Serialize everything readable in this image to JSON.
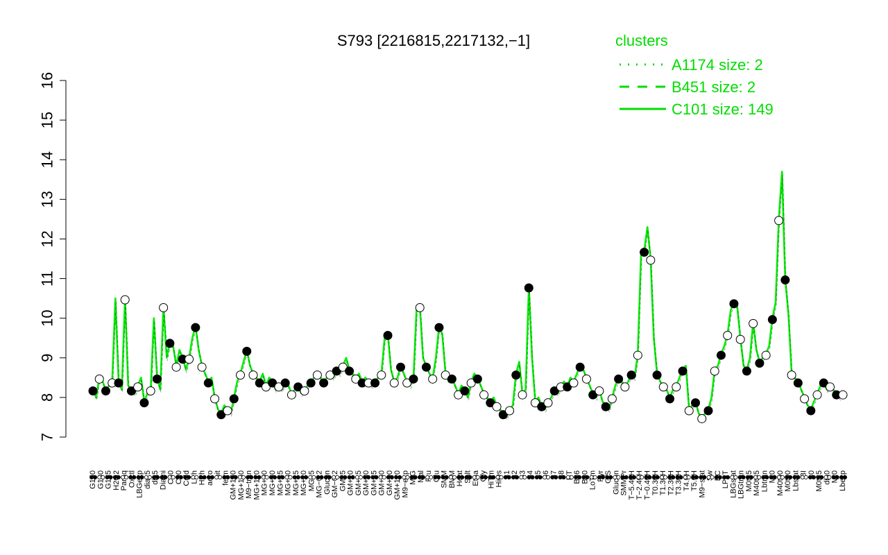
{
  "colors": {
    "series": "#00ee00",
    "legend": "#00dd00",
    "axis": "#000000",
    "marker_fill_dark": "#000000",
    "marker_fill_light": "#ffffff"
  },
  "chart_data": {
    "type": "line",
    "title": "S793 [2216815,2217132,−1]",
    "xlabel": "",
    "ylabel": "",
    "ylim": [
      7,
      16
    ],
    "yticks": [
      7,
      8,
      9,
      10,
      11,
      12,
      13,
      14,
      15,
      16
    ],
    "grid": false,
    "legend": {
      "title": "clusters",
      "placement": "top-right",
      "entries": [
        {
          "label": "A1174 size: 2",
          "style": "dotted"
        },
        {
          "label": "B451 size: 2",
          "style": "dashed"
        },
        {
          "label": "C101 size: 149",
          "style": "solid"
        }
      ]
    },
    "x_labels": [
      "G150",
      "G180",
      "G135",
      "H2O2",
      "Paraq",
      "Oxctl",
      "LBGexp",
      "dia15",
      "dia5",
      "Diami",
      "C30",
      "C90",
      "Cold",
      "LPh",
      "HPh",
      "aero",
      "nit",
      "ferm",
      "GM+150",
      "MG+150",
      "M9−tran",
      "MG+120",
      "MG+90",
      "MG+60",
      "MG+45",
      "MG+30",
      "MG+15",
      "MG+10",
      "MG+5",
      "MG−0.2",
      "Glucon",
      "GM−0.2",
      "GM+5",
      "GM+10",
      "GM+15",
      "GM+30",
      "GM+45",
      "GM+60",
      "GM+90",
      "GM+120",
      "M9−exp",
      "M/G",
      "Mal",
      "Fru",
      "Glu",
      "SMM",
      "BMM",
      "Heat",
      "Salt",
      "Etha",
      "Gly",
      "HiTm",
      "HiOs",
      "S1",
      "S2",
      "S3",
      "S4",
      "S5",
      "S6",
      "S7",
      "S8",
      "BT",
      "B36",
      "B60",
      "LoTm",
      "Pyr",
      "G/S",
      "Glucon",
      "SMMPr",
      "T−5.40H",
      "T−2.40H",
      "T−0.40H",
      "T0.30H",
      "T1.30H",
      "T2.30H",
      "T3.30H",
      "T4.0H",
      "T5.0H",
      "M9−stat",
      "Sw",
      "BC",
      "LPhT",
      "LBGstat",
      "LBGtran",
      "M0t45",
      "M40t45",
      "Lbtran",
      "Mt0",
      "M40t90",
      "M0t90",
      "Lbstat",
      "BI",
      "S0",
      "M0t45",
      "dia0",
      "Mt0",
      "Lbexp"
    ],
    "series": [
      {
        "values": [
          8.2,
          8.0,
          8.5,
          8.4,
          8.2,
          8.3,
          8.4,
          10.5,
          8.4,
          8.2,
          10.5,
          8.3,
          8.2,
          8.1,
          8.3,
          8.5,
          7.9,
          8.1,
          8.2,
          10.0,
          8.5,
          8.2,
          10.3,
          9.0,
          9.4,
          9.3,
          8.8,
          9.2,
          9.0,
          8.7,
          9.0,
          9.5,
          9.8,
          9.2,
          8.8,
          8.6,
          8.4,
          8.5,
          8.0,
          7.7,
          7.6,
          7.8,
          7.7,
          7.6,
          8.0,
          8.4,
          8.6,
          8.9,
          9.2,
          8.8,
          8.6,
          8.5,
          8.4,
          8.6,
          8.3,
          8.5,
          8.4,
          8.2,
          8.3,
          8.2,
          8.4,
          8.3,
          8.1,
          8.2,
          8.3,
          8.1,
          8.2,
          8.3,
          8.4,
          8.5,
          8.6,
          8.5,
          8.4,
          8.5,
          8.6,
          8.5,
          8.7,
          8.6,
          8.8,
          9.0,
          8.7,
          8.6,
          8.5,
          8.6,
          8.4,
          8.5,
          8.4,
          8.3,
          8.4,
          8.5,
          8.6,
          9.5,
          9.6,
          8.7,
          8.4,
          8.5,
          8.8,
          8.6,
          8.4,
          8.3,
          8.5,
          10.3,
          10.3,
          9.0,
          8.8,
          8.6,
          8.5,
          9.0,
          9.8,
          9.6,
          8.6,
          8.4,
          8.5,
          8.3,
          8.1,
          8.3,
          8.2,
          8.0,
          8.4,
          8.6,
          8.5,
          8.3,
          8.1,
          8.0,
          7.9,
          8.0,
          7.8,
          7.7,
          7.6,
          7.5,
          7.7,
          7.8,
          8.6,
          8.9,
          8.1,
          8.2,
          10.8,
          9.0,
          7.9,
          8.0,
          7.8,
          7.7,
          7.9,
          8.0,
          8.2,
          8.1,
          8.3,
          8.4,
          8.3,
          8.5,
          8.4,
          8.6,
          8.8,
          8.7,
          8.5,
          8.3,
          8.1,
          8.0,
          8.2,
          7.9,
          7.8,
          7.7,
          8.0,
          8.3,
          8.5,
          8.4,
          8.3,
          8.4,
          8.6,
          8.5,
          9.1,
          11.6,
          11.7,
          12.3,
          11.5,
          9.5,
          8.6,
          8.4,
          8.3,
          8.2,
          8.0,
          8.2,
          8.3,
          8.5,
          8.7,
          8.8,
          7.7,
          7.8,
          7.9,
          7.6,
          7.5,
          7.6,
          7.7,
          8.0,
          8.7,
          8.8,
          9.1,
          9.3,
          9.6,
          10.2,
          10.4,
          10.3,
          9.5,
          8.8,
          8.7,
          9.0,
          9.9,
          9.2,
          8.9,
          9.0,
          9.1,
          9.3,
          10.0,
          10.4,
          12.5,
          13.7,
          11.0,
          10.1,
          8.6,
          8.5,
          8.4,
          8.2,
          8.0,
          7.8,
          7.7,
          7.9,
          8.1,
          8.3,
          8.4,
          8.2,
          8.3,
          8.2,
          8.1,
          8.0,
          8.1
        ]
      }
    ]
  }
}
